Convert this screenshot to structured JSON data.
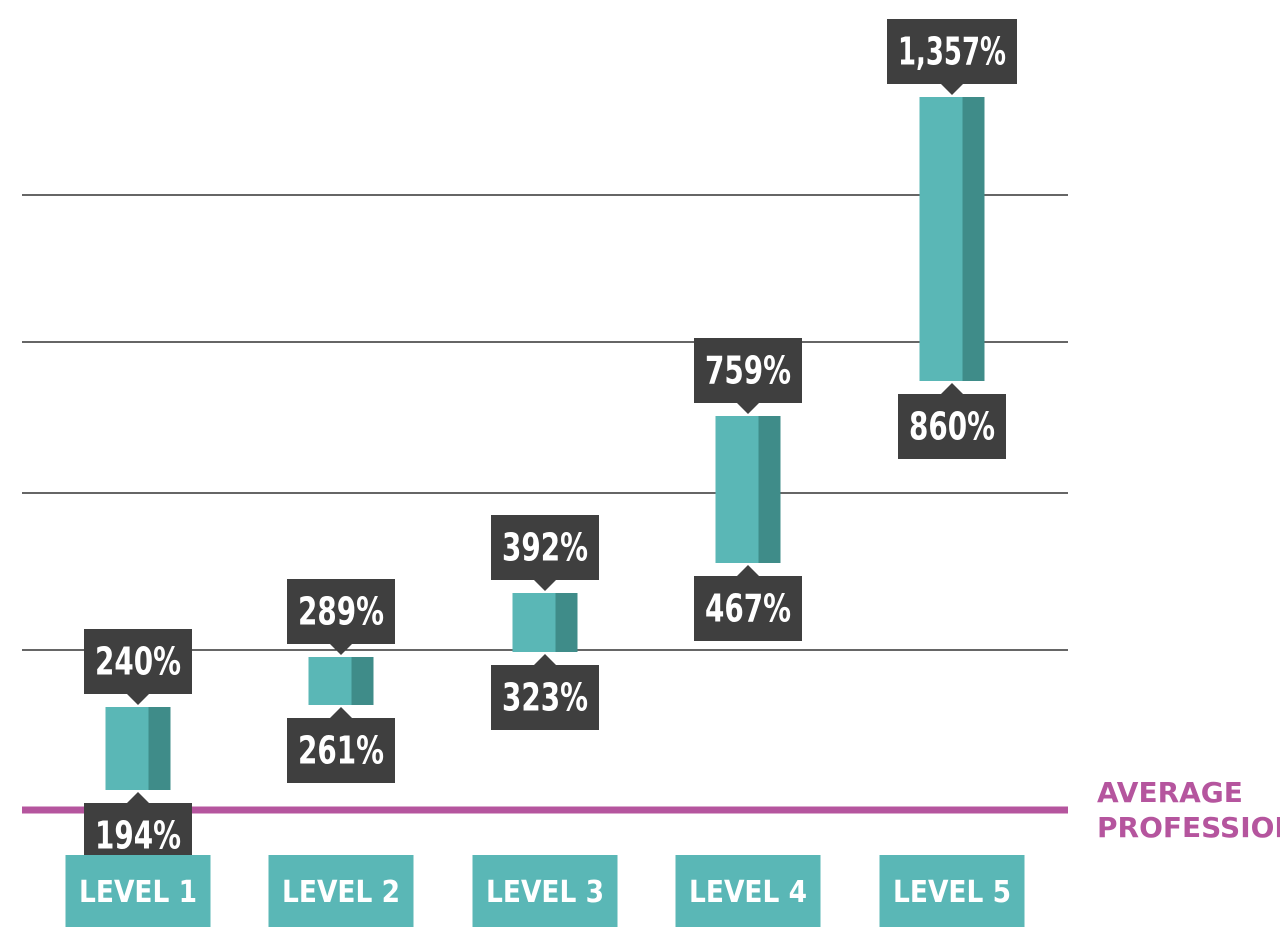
{
  "chart_data": {
    "type": "bar",
    "categories": [
      "LEVEL 1",
      "LEVEL 2",
      "LEVEL 3",
      "LEVEL 4",
      "LEVEL 5"
    ],
    "ranges": [
      {
        "low": 194,
        "high": 240,
        "low_label": "194%",
        "high_label": "240%"
      },
      {
        "low": 261,
        "high": 289,
        "low_label": "261%",
        "high_label": "289%"
      },
      {
        "low": 323,
        "high": 392,
        "low_label": "323%",
        "high_label": "392%"
      },
      {
        "low": 467,
        "high": 759,
        "low_label": "467%",
        "high_label": "759%"
      },
      {
        "low": 860,
        "high": 1357,
        "low_label": "860%",
        "high_label": "1,357%"
      }
    ],
    "reference_line": {
      "label_lines": [
        "AVERAGE",
        "PROFESSIONAL"
      ],
      "value": 100
    },
    "grid": true,
    "title": "",
    "xlabel": "",
    "ylabel": ""
  },
  "colors": {
    "bar": "#5ab7b6",
    "bar_shade": "#3f8c89",
    "label_bg": "#3f3f3f",
    "category_bg": "#5ab7b6",
    "reference": "#b5559e",
    "grid": "#333333"
  }
}
